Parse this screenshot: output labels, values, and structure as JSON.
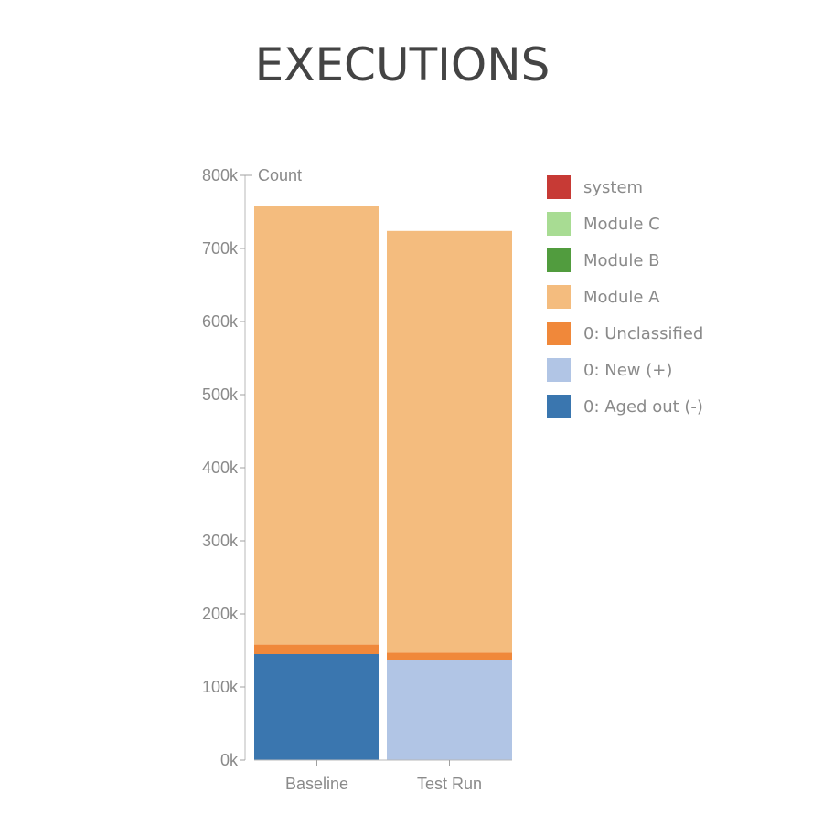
{
  "chart_data": {
    "type": "bar",
    "stacked": true,
    "title": "EXECUTIONS",
    "ylabel": "Count",
    "xlabel": "",
    "ylim": [
      0,
      800000
    ],
    "yticks": [
      0,
      100000,
      200000,
      300000,
      400000,
      500000,
      600000,
      700000,
      800000
    ],
    "ytick_labels": [
      "0k",
      "100k",
      "200k",
      "300k",
      "400k",
      "500k",
      "600k",
      "700k",
      "800k"
    ],
    "categories": [
      "Baseline",
      "Test Run"
    ],
    "series": [
      {
        "name": "0: Aged out (-)",
        "color": "#3a76af",
        "values": [
          145000,
          0
        ]
      },
      {
        "name": "0: New (+)",
        "color": "#b1c5e5",
        "values": [
          0,
          137000
        ]
      },
      {
        "name": "0: Unclassified",
        "color": "#f0883a",
        "values": [
          13000,
          10000
        ]
      },
      {
        "name": "Module A",
        "color": "#f4bc7e",
        "values": [
          600000,
          577000
        ]
      },
      {
        "name": "Module B",
        "color": "#519c3e",
        "values": [
          0,
          0
        ]
      },
      {
        "name": "Module C",
        "color": "#a8dc93",
        "values": [
          0,
          0
        ]
      },
      {
        "name": "system",
        "color": "#c73a35",
        "values": [
          0,
          0
        ]
      }
    ],
    "legend": {
      "placement": "right",
      "order": [
        "system",
        "Module C",
        "Module B",
        "Module A",
        "0: Unclassified",
        "0: New (+)",
        "0: Aged out (-)"
      ]
    },
    "grid": false
  }
}
